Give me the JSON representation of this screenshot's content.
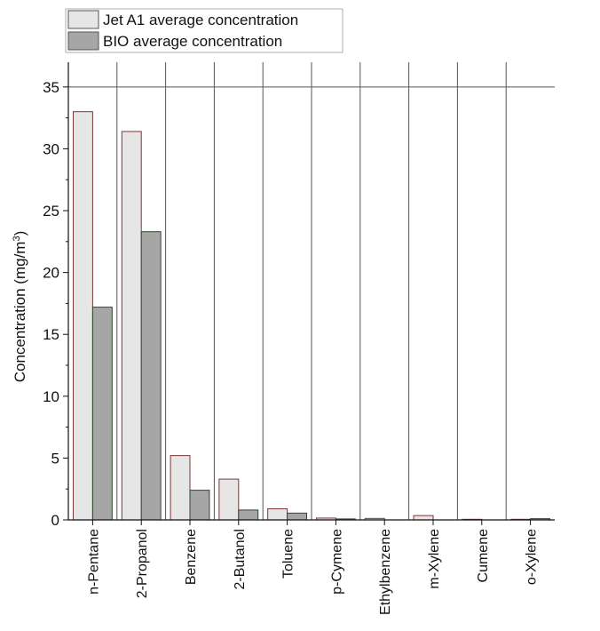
{
  "chart_data": {
    "type": "bar",
    "title": "",
    "xlabel": "",
    "ylabel": "Concentration (mg/m",
    "ylabel_sup": "3",
    "ylabel_close": ")",
    "ylim": [
      0,
      37
    ],
    "yticks": [
      "0",
      "5",
      "10",
      "15",
      "20",
      "25",
      "30",
      "35"
    ],
    "categories": [
      "n-Pentane",
      "2-Propanol",
      "Benzene",
      "2-Butanol",
      "Toluene",
      "p-Cymene",
      "Ethylbenzene",
      "m-Xylene",
      "Cumene",
      "o-Xylene"
    ],
    "series": [
      {
        "name": "Jet A1 average concentration",
        "color": "#e6e6e6",
        "edge": "#7a3535",
        "values": [
          33.0,
          31.4,
          5.2,
          3.3,
          0.9,
          0.15,
          0.12,
          0.35,
          0.05,
          0.05
        ]
      },
      {
        "name": "BIO average concentration",
        "color": "#a6a6a6",
        "edge": "#2d4a2d",
        "values": [
          17.2,
          23.3,
          2.4,
          0.8,
          0.55,
          0.08,
          0.0,
          0.0,
          0.0,
          0.1
        ]
      }
    ],
    "grid": "horizontal line at 35 and vertical category separators",
    "legend_position": "top-left"
  }
}
